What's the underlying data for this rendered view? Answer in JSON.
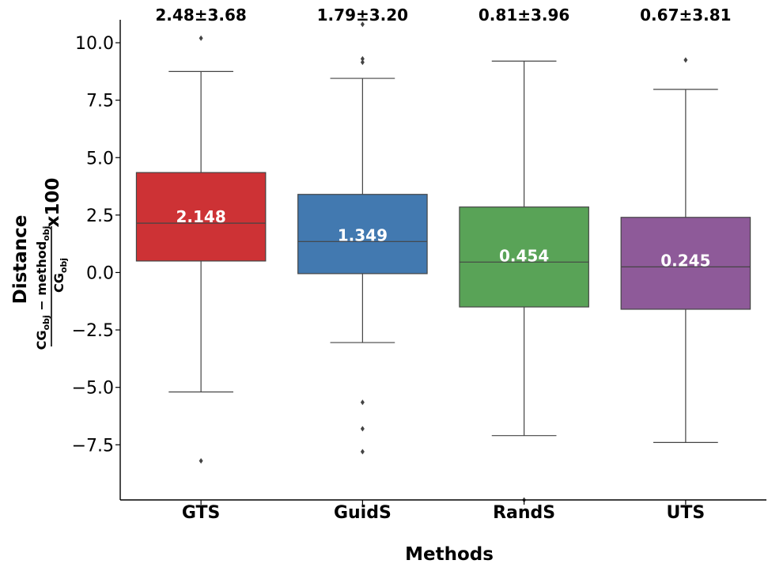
{
  "chart_data": {
    "type": "box",
    "xlabel": "Methods",
    "ylabel": {
      "word": "Distance",
      "numerator": "CG",
      "numerator_sub": "obj",
      "minus": " − method",
      "minus_sub": "obj",
      "denominator": "CG",
      "denominator_sub": "obj",
      "multiplier": "x100"
    },
    "ylim": [
      -9.9,
      11.0
    ],
    "yticks": [
      -7.5,
      -5.0,
      -2.5,
      0.0,
      2.5,
      5.0,
      7.5,
      10.0
    ],
    "ytick_labels": [
      "−7.5",
      "−5.0",
      "−2.5",
      "0.0",
      "2.5",
      "5.0",
      "7.5",
      "10.0"
    ],
    "grid": false,
    "categories": [
      "GTS",
      "GuidS",
      "RandS",
      "UTS"
    ],
    "boxes": [
      {
        "name": "GTS",
        "color": "#CD3235",
        "whisker_low": -5.2,
        "q1": 0.5,
        "median": 2.148,
        "q3": 4.35,
        "whisker_high": 8.75,
        "outliers": [
          10.2,
          -8.2
        ],
        "median_label": "2.148",
        "stat_label": "2.48±3.68"
      },
      {
        "name": "GuidS",
        "color": "#4279B0",
        "whisker_low": -3.05,
        "q1": -0.05,
        "median": 1.349,
        "q3": 3.4,
        "whisker_high": 8.45,
        "outliers": [
          10.8,
          9.3,
          9.15,
          -5.65,
          -6.8,
          -7.8
        ],
        "median_label": "1.349",
        "stat_label": "1.79±3.20"
      },
      {
        "name": "RandS",
        "color": "#59A357",
        "whisker_low": -7.1,
        "q1": -1.5,
        "median": 0.454,
        "q3": 2.85,
        "whisker_high": 9.2,
        "outliers": [
          -9.9
        ],
        "median_label": "0.454",
        "stat_label": "0.81±3.96"
      },
      {
        "name": "UTS",
        "color": "#8E5A99",
        "whisker_low": -7.4,
        "q1": -1.6,
        "median": 0.245,
        "q3": 2.4,
        "whisker_high": 7.97,
        "outliers": [
          9.25
        ],
        "median_label": "0.245",
        "stat_label": "0.67±3.81"
      }
    ]
  }
}
